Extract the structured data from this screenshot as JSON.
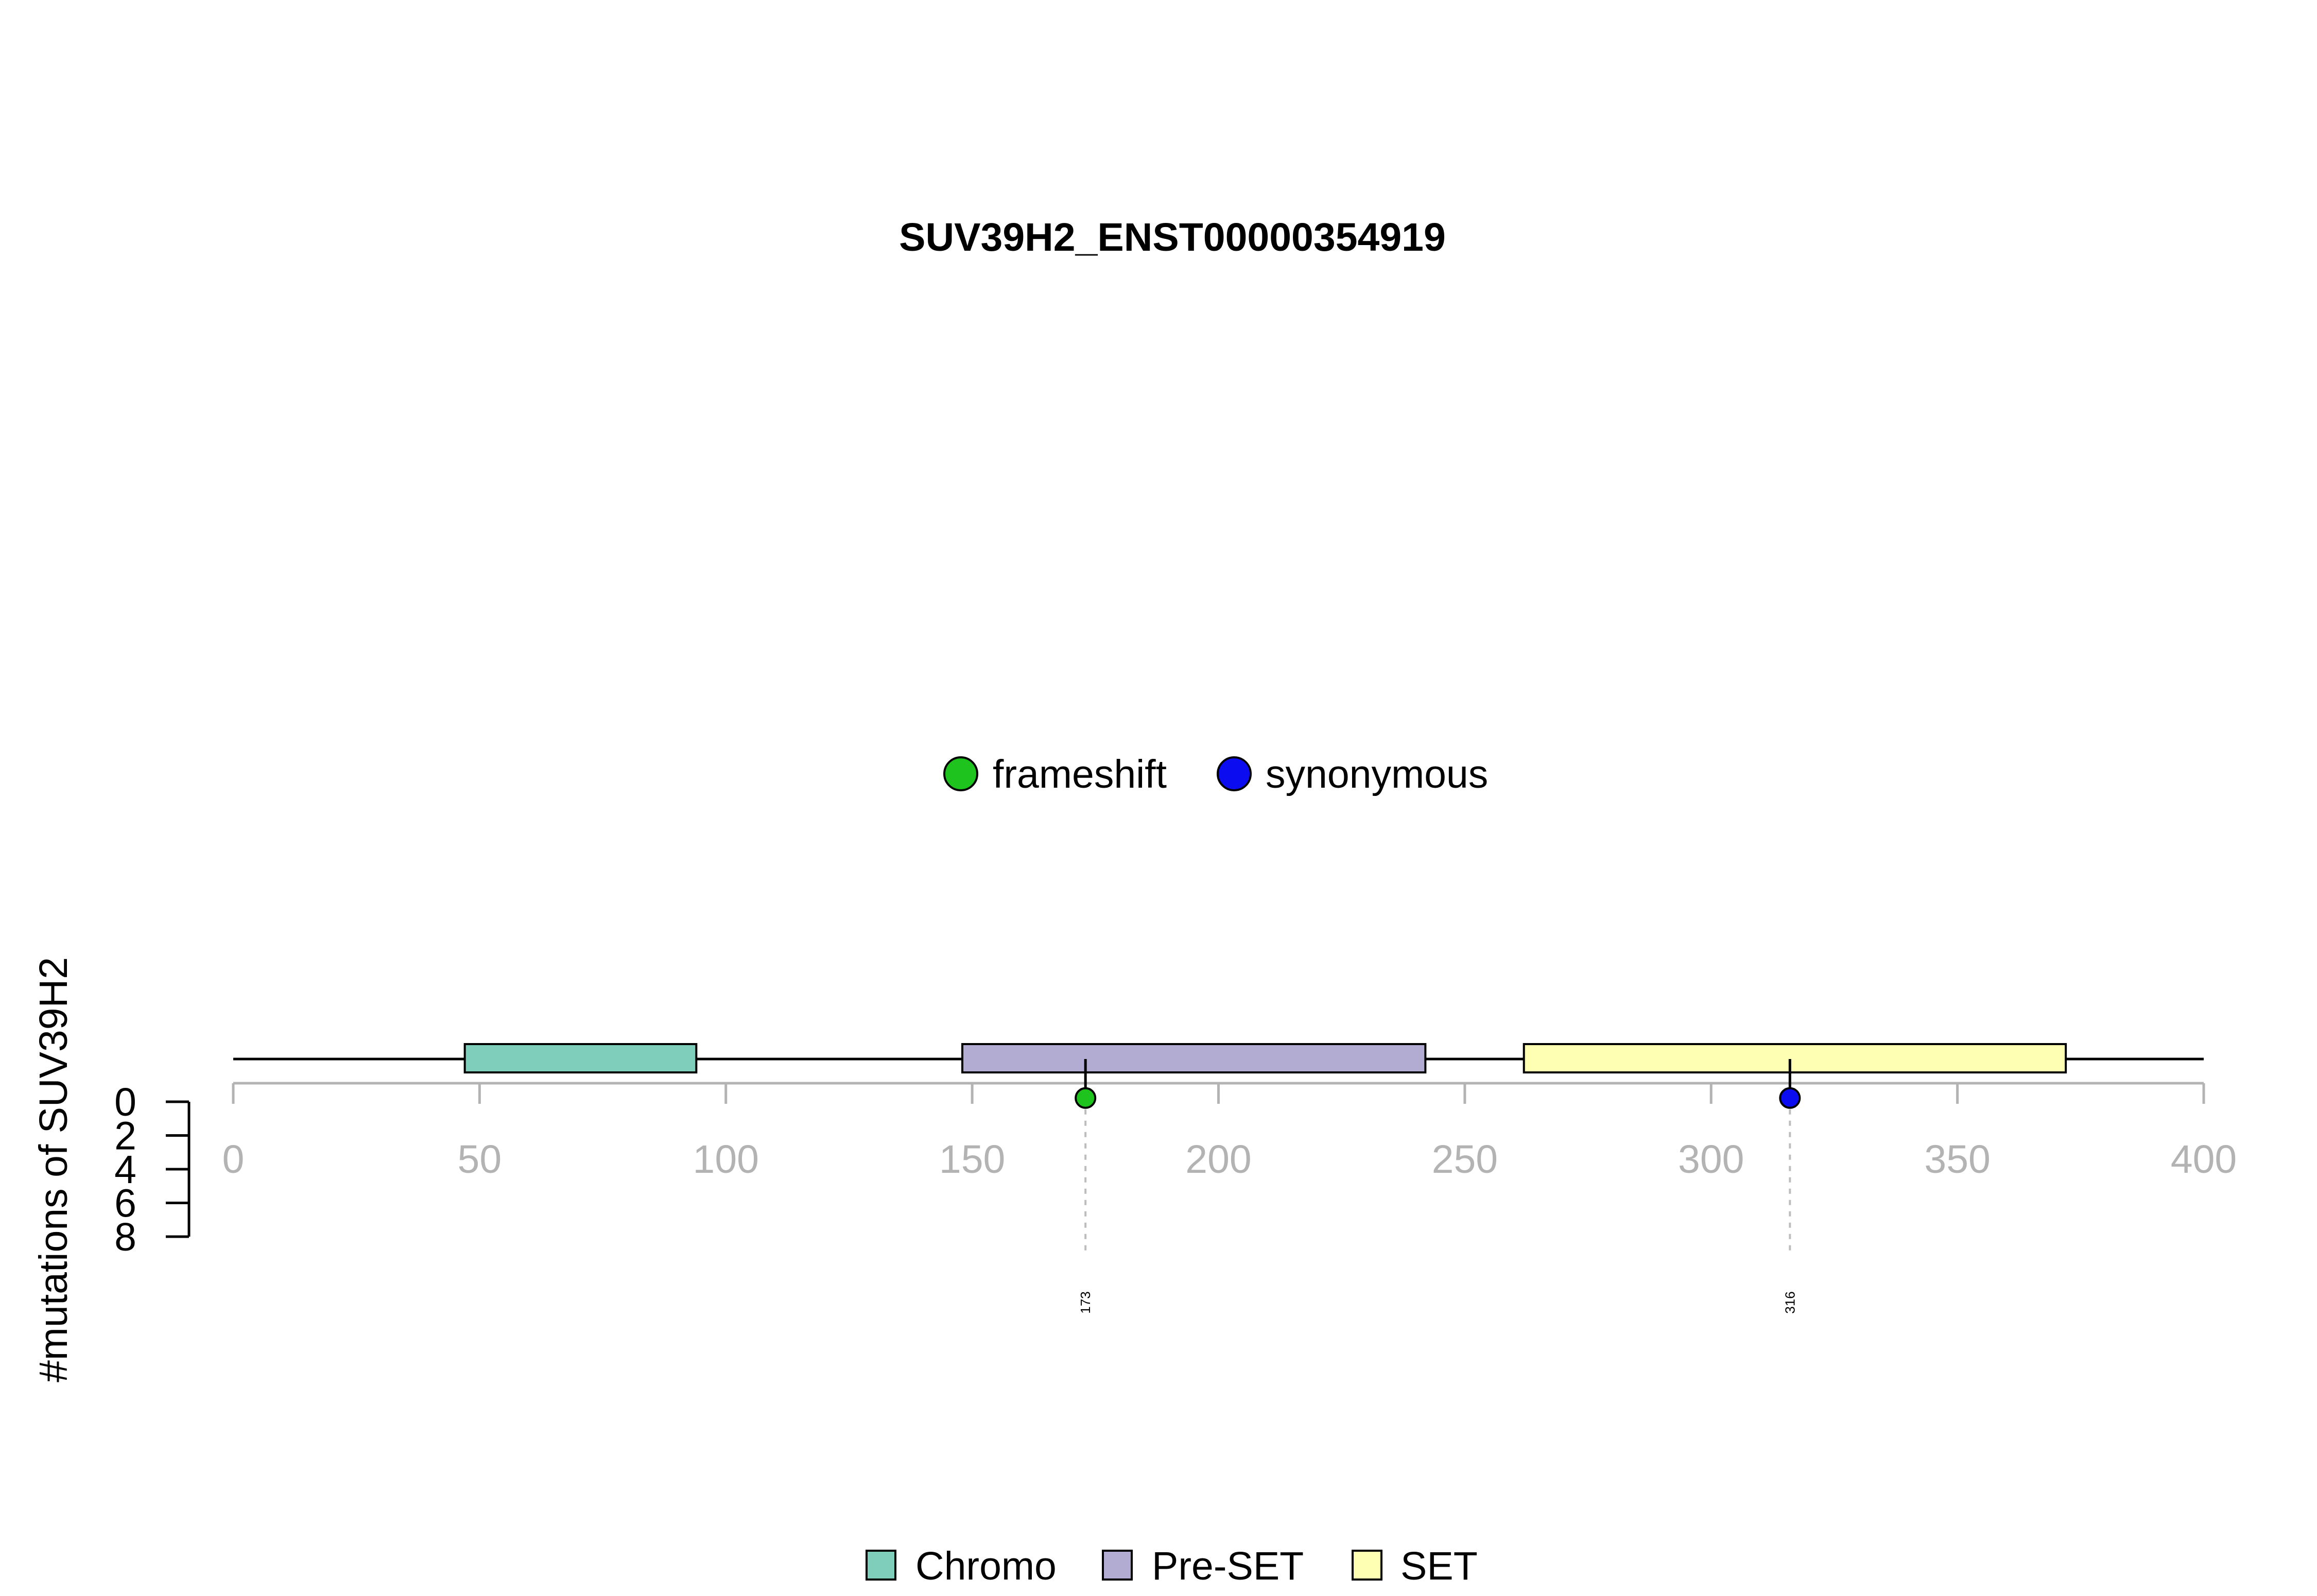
{
  "chart_data": {
    "type": "lollipop",
    "title": "SUV39H2_ENST00000354919",
    "ylabel": "#mutations of SUV39H2",
    "xlim": [
      0,
      400
    ],
    "x_ticks": [
      0,
      50,
      100,
      150,
      200,
      250,
      300,
      350,
      400
    ],
    "y_ticks": [
      0,
      2,
      4,
      6,
      8
    ],
    "ylim": [
      0,
      8
    ],
    "domains": [
      {
        "name": "Chromo",
        "start": 47,
        "end": 94,
        "color": "#7fcdbb"
      },
      {
        "name": "Pre-SET",
        "start": 148,
        "end": 242,
        "color": "#b3acd2"
      },
      {
        "name": "SET",
        "start": 262,
        "end": 372,
        "color": "#ffffb3"
      }
    ],
    "mutations": [
      {
        "position": 173,
        "label": "173",
        "count": 1,
        "type": "frameshift"
      },
      {
        "position": 316,
        "label": "316",
        "count": 1,
        "type": "synonymous"
      }
    ],
    "mutation_types": [
      {
        "name": "frameshift",
        "color": "#1ec31e"
      },
      {
        "name": "synonymous",
        "color": "#0c0cf0"
      }
    ],
    "colors": {
      "axis": "#b3b3b3",
      "tick_label": "#b3b3b3",
      "backbone": "#000000",
      "guide": "#bdbdbd"
    }
  }
}
